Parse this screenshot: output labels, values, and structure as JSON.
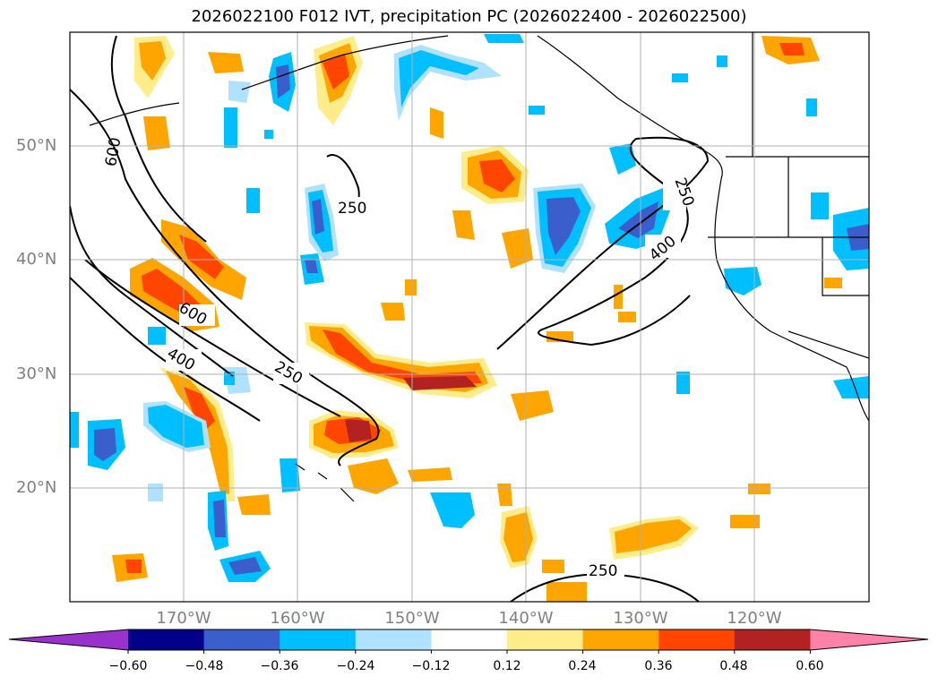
{
  "title": "2026022100 F012 IVT, precipitation PC (2026022400 - 2026022500)",
  "map": {
    "lat_labels": [
      "50°N",
      "40°N",
      "30°N",
      "20°N"
    ],
    "lon_labels": [
      "170°W",
      "160°W",
      "150°W",
      "140°W",
      "130°W",
      "120°W"
    ],
    "contour_labels": [
      "600",
      "250",
      "600",
      "400",
      "250",
      "250",
      "400",
      "250"
    ]
  },
  "colorbar": {
    "labels": [
      "−0.60",
      "−0.48",
      "−0.36",
      "−0.24",
      "−0.12",
      "0.12",
      "0.24",
      "0.36",
      "0.48",
      "0.60"
    ],
    "colors": [
      "#9932cc",
      "#00008b",
      "#3a5fcd",
      "#00bfff",
      "#b0e2ff",
      "#ffffff",
      "#ffec8b",
      "#ffa500",
      "#ff4500",
      "#b22222",
      "#ff82ab"
    ]
  }
}
